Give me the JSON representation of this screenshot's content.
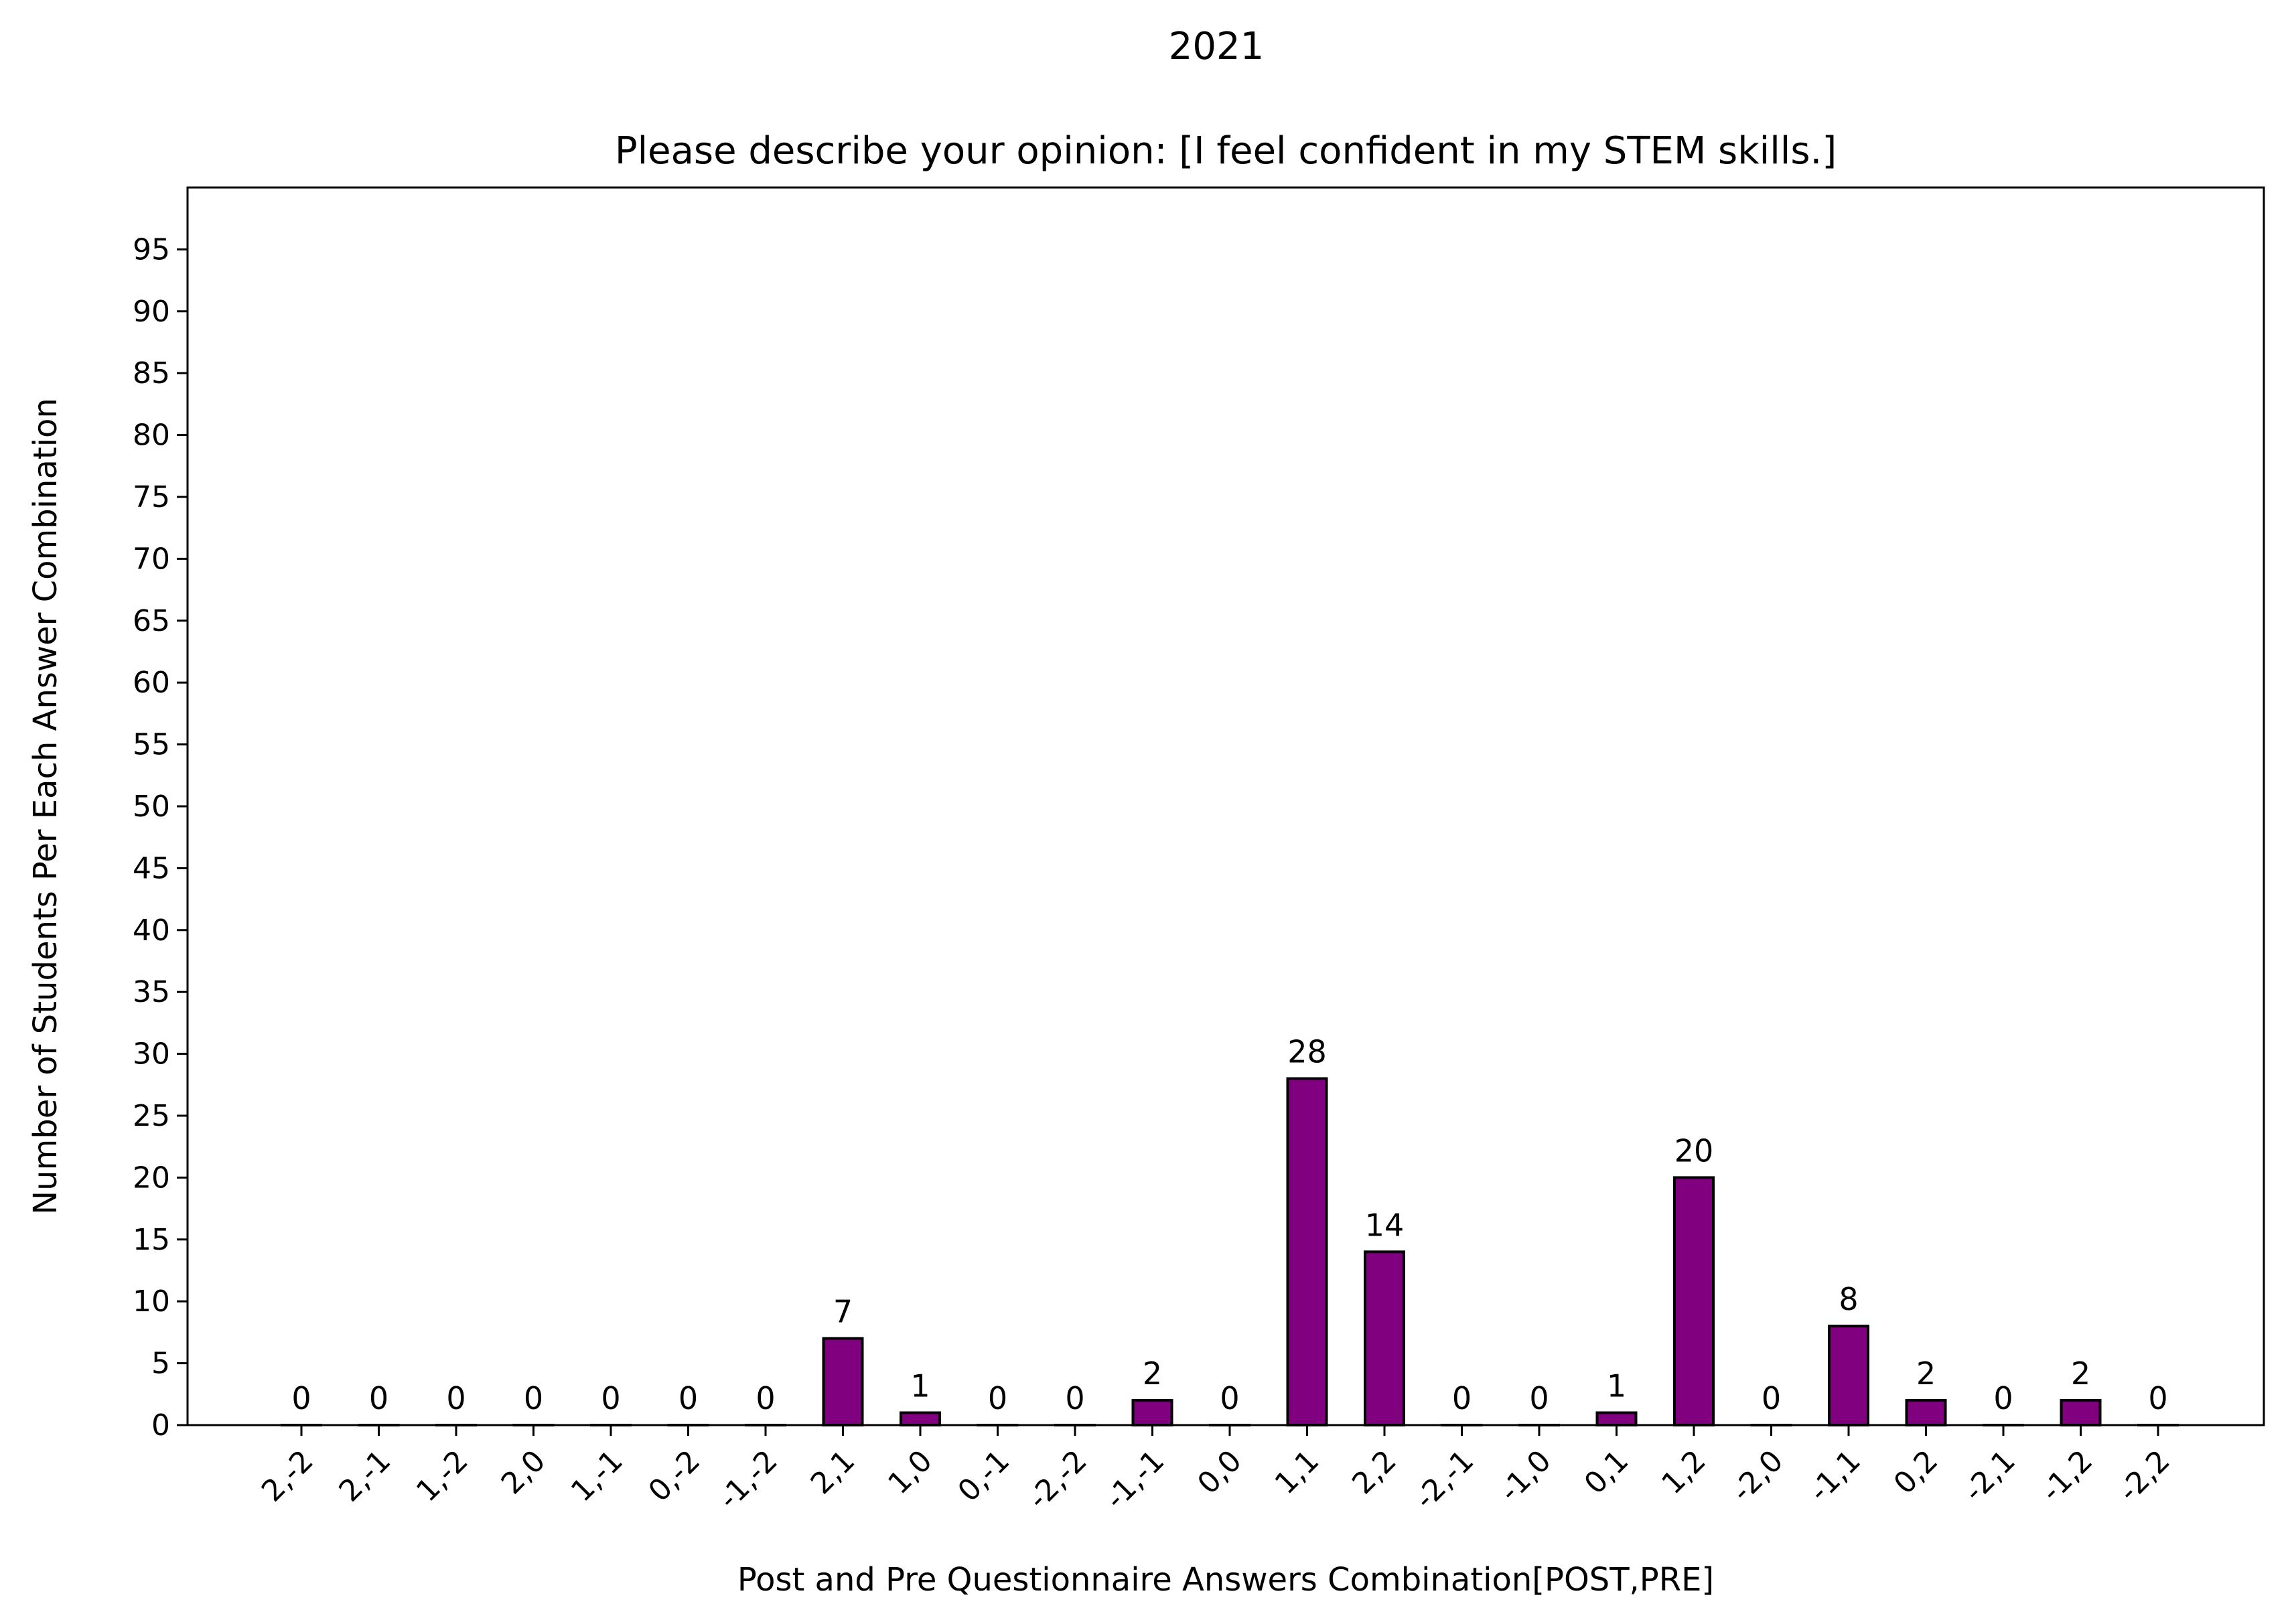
{
  "chart_data": {
    "type": "bar",
    "suptitle": "2021",
    "title": "Please describe your opinion: [I feel confident in my STEM skills.]",
    "xlabel": "Post and Pre Questionnaire Answers Combination[POST,PRE]",
    "ylabel": "Number of Students Per Each Answer Combination",
    "categories": [
      "2,-2",
      "2,-1",
      "1,-2",
      "2,0",
      "1,-1",
      "0,-2",
      "-1,-2",
      "2,1",
      "1,0",
      "0,-1",
      "-2,-2",
      "-1,-1",
      "0,0",
      "1,1",
      "2,2",
      "-2,-1",
      "-1,0",
      "0,1",
      "1,2",
      "-2,0",
      "-1,1",
      "0,2",
      "-2,1",
      "-1,2",
      "-2,2"
    ],
    "values": [
      0,
      0,
      0,
      0,
      0,
      0,
      0,
      7,
      1,
      0,
      0,
      2,
      0,
      28,
      14,
      0,
      0,
      1,
      20,
      0,
      8,
      2,
      0,
      2,
      0
    ],
    "data_labels": [
      "0",
      "0",
      "0",
      "0",
      "0",
      "0",
      "0",
      "7",
      "1",
      "0",
      "0",
      "2",
      "0",
      "28",
      "14",
      "0",
      "0",
      "1",
      "20",
      "0",
      "8",
      "2",
      "0",
      "2",
      "0"
    ],
    "ylim": [
      0,
      100
    ],
    "yticks": [
      "0",
      "5",
      "10",
      "15",
      "20",
      "25",
      "30",
      "35",
      "40",
      "45",
      "50",
      "55",
      "60",
      "65",
      "70",
      "75",
      "80",
      "85",
      "90",
      "95"
    ],
    "ytick_values": [
      0,
      5,
      10,
      15,
      20,
      25,
      30,
      35,
      40,
      45,
      50,
      55,
      60,
      65,
      70,
      75,
      80,
      85,
      90,
      95
    ],
    "bar_color": "#800080",
    "edge_color": "#000000",
    "grid": false,
    "legend": "none"
  }
}
